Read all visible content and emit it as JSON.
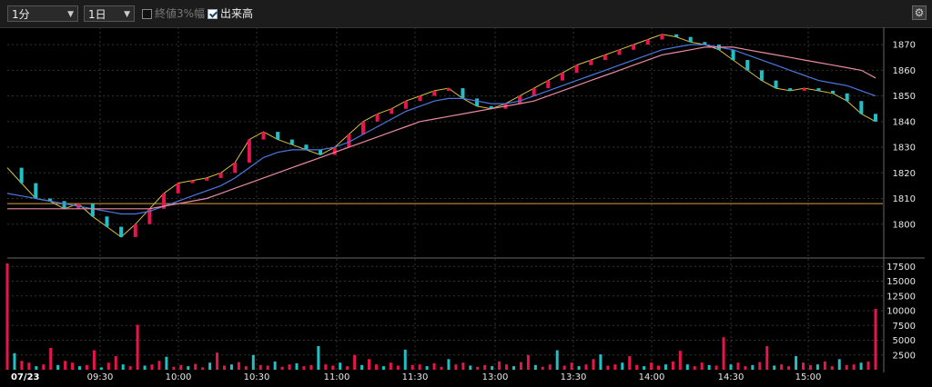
{
  "toolbar": {
    "interval": "1分",
    "range": "1日",
    "close_pct_label": "終値3%幅",
    "close_pct_checked": false,
    "volume_label": "出来高",
    "volume_checked": true,
    "settings_icon": "gear-icon"
  },
  "chart_data": [
    {
      "type": "candlestick",
      "ylim": [
        1790,
        1875
      ],
      "yticks": [
        "1870",
        "1860",
        "1850",
        "1840",
        "1830",
        "1820",
        "1810",
        "1800"
      ],
      "xticks": [
        "07/23",
        "09:30",
        "10:00",
        "10:30",
        "11:00",
        "11:30",
        "13:00",
        "13:30",
        "14:00",
        "14:30",
        "15:00"
      ],
      "reference_line": 1808,
      "series": [
        {
          "name": "",
          "values": [
            1822,
            1816,
            1810,
            1809,
            1806,
            1808,
            1803,
            1799,
            1795,
            1800,
            1806,
            1812,
            1816,
            1817,
            1818,
            1820,
            1824,
            1833,
            1836,
            1833,
            1831,
            1829,
            1827,
            1830,
            1835,
            1840,
            1843,
            1845,
            1848,
            1850,
            1852,
            1853,
            1849,
            1846,
            1845,
            1847,
            1850,
            1853,
            1856,
            1859,
            1862,
            1864,
            1866,
            1868,
            1870,
            1872,
            1874,
            1873,
            1871,
            1870,
            1868,
            1864,
            1860,
            1856,
            1853,
            1852,
            1853,
            1852,
            1851,
            1848,
            1843,
            1840
          ]
        },
        {
          "name": "",
          "values": [
            1812,
            1811,
            1810,
            1809,
            1808,
            1807,
            1806,
            1805,
            1804,
            1804,
            1805,
            1807,
            1809,
            1811,
            1813,
            1815,
            1818,
            1822,
            1826,
            1828,
            1829,
            1829,
            1829,
            1830,
            1832,
            1835,
            1838,
            1841,
            1844,
            1846,
            1848,
            1849,
            1849,
            1848,
            1847,
            1847,
            1848,
            1850,
            1852,
            1854,
            1856,
            1858,
            1860,
            1862,
            1864,
            1866,
            1868,
            1869,
            1870,
            1870,
            1869,
            1868,
            1866,
            1864,
            1862,
            1860,
            1858,
            1856,
            1855,
            1854,
            1852,
            1850
          ]
        },
        {
          "name": "",
          "values": [
            1806,
            1806,
            1806,
            1806,
            1806,
            1806,
            1806,
            1806,
            1806,
            1806,
            1806,
            1807,
            1808,
            1809,
            1810,
            1812,
            1814,
            1816,
            1818,
            1820,
            1822,
            1824,
            1826,
            1828,
            1830,
            1832,
            1834,
            1836,
            1838,
            1840,
            1841,
            1842,
            1843,
            1844,
            1845,
            1846,
            1847,
            1848,
            1850,
            1852,
            1854,
            1856,
            1858,
            1860,
            1862,
            1864,
            1866,
            1867,
            1868,
            1869,
            1869,
            1869,
            1868,
            1867,
            1866,
            1865,
            1864,
            1863,
            1862,
            1861,
            1860,
            1857
          ]
        }
      ]
    },
    {
      "type": "bar",
      "ylim": [
        0,
        18000
      ],
      "yticks": [
        "17500",
        "15000",
        "12500",
        "10000",
        "7500",
        "5000",
        "2500"
      ],
      "values": [
        18000,
        2800,
        1500,
        1200,
        600,
        900,
        3700,
        800,
        1500,
        1200,
        600,
        800,
        3300,
        400,
        1200,
        2300,
        900,
        600,
        7600,
        700,
        900,
        1500,
        2200,
        500,
        800,
        600,
        1000,
        400,
        1200,
        2900,
        700,
        900,
        1300,
        600,
        2500,
        800,
        700,
        1400,
        500,
        900,
        1100,
        600,
        800,
        4000,
        900,
        700,
        1200,
        600,
        2500,
        800,
        1800,
        900,
        600,
        1200,
        700,
        3400,
        800,
        900,
        600,
        1100,
        500,
        1800,
        900,
        1200,
        700,
        500,
        800,
        600,
        1400,
        900,
        600,
        1300,
        2500,
        800,
        500,
        900,
        3300,
        700,
        1200,
        600,
        900,
        1800,
        2600,
        700,
        900,
        1200,
        2300,
        800,
        600,
        1200,
        700,
        900,
        1400,
        3200,
        900,
        600,
        1200,
        800,
        700,
        5500,
        900,
        1200,
        600,
        800,
        1300,
        4000,
        700,
        900,
        600,
        2300,
        1200,
        800,
        900,
        1400,
        600,
        1800,
        800,
        900,
        1200,
        1400,
        10300
      ]
    }
  ]
}
